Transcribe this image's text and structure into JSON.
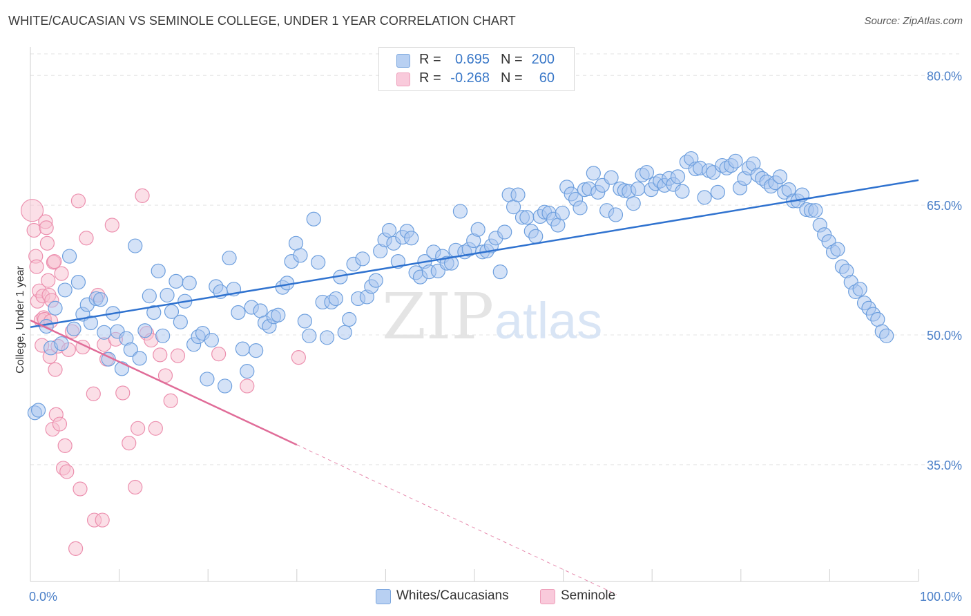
{
  "header": {
    "title": "WHITE/CAUCASIAN VS SEMINOLE COLLEGE, UNDER 1 YEAR CORRELATION CHART",
    "source": "Source: ZipAtlas.com"
  },
  "legend": {
    "rows": [
      {
        "r_label": "R =",
        "r_value": "0.695",
        "n_label": "N =",
        "n_value": "200"
      },
      {
        "r_label": "R =",
        "r_value": "-0.268",
        "n_label": "N =",
        "n_value": "60"
      }
    ]
  },
  "watermark": {
    "zip": "ZIP",
    "atlas": "atlas"
  },
  "colors": {
    "blue_fill": "#a9c6ef",
    "blue_stroke": "#6d9fde",
    "blue_line": "#2f72cf",
    "pink_fill": "#f7bfd0",
    "pink_stroke": "#ec8fae",
    "pink_line": "#e06c98",
    "axis_text": "#4a7fc8",
    "grid": "#e3e3e3"
  },
  "chart_data": {
    "type": "scatter",
    "title": "WHITE/CAUCASIAN VS SEMINOLE COLLEGE, UNDER 1 YEAR CORRELATION CHART",
    "xlabel": "",
    "ylabel": "College, Under 1 year",
    "xlim": [
      0,
      100
    ],
    "ylim": [
      21.5,
      82.5
    ],
    "x_tick_labels": [
      "0.0%",
      "100.0%"
    ],
    "y_ticks": [
      35,
      50,
      65,
      80
    ],
    "y_tick_labels": [
      "35.0%",
      "50.0%",
      "65.0%",
      "80.0%"
    ],
    "grid": "horizontal dashed",
    "legend_position": "bottom-center",
    "series": [
      {
        "name": "Whites/Caucasians",
        "r": 0.695,
        "n": 200,
        "trend": {
          "x": [
            0,
            100
          ],
          "y": [
            50.9,
            67.9
          ]
        },
        "points": [
          [
            0.5,
            41
          ],
          [
            0.9,
            41.3
          ],
          [
            1.8,
            51
          ],
          [
            2.3,
            48.5
          ],
          [
            2.8,
            53.1
          ],
          [
            3.5,
            49
          ],
          [
            3.9,
            55.2
          ],
          [
            4.4,
            59.1
          ],
          [
            4.9,
            50.7
          ],
          [
            5.4,
            56.1
          ],
          [
            5.9,
            52.4
          ],
          [
            6.4,
            53.5
          ],
          [
            6.8,
            51.4
          ],
          [
            7.4,
            54.2
          ],
          [
            7.9,
            54.1
          ],
          [
            8.3,
            50.3
          ],
          [
            8.8,
            47.2
          ],
          [
            9.3,
            52.5
          ],
          [
            9.8,
            50.4
          ],
          [
            10.3,
            46.1
          ],
          [
            10.8,
            49.6
          ],
          [
            11.3,
            48.3
          ],
          [
            11.8,
            60.3
          ],
          [
            12.3,
            47.3
          ],
          [
            12.9,
            50.5
          ],
          [
            13.4,
            54.5
          ],
          [
            13.9,
            52.6
          ],
          [
            14.4,
            57.4
          ],
          [
            14.9,
            49.9
          ],
          [
            15.4,
            54.6
          ],
          [
            15.9,
            52.7
          ],
          [
            16.4,
            56.2
          ],
          [
            16.9,
            51.5
          ],
          [
            17.4,
            53.9
          ],
          [
            17.9,
            56
          ],
          [
            18.4,
            48.9
          ],
          [
            18.9,
            49.8
          ],
          [
            19.4,
            50.2
          ],
          [
            19.9,
            44.9
          ],
          [
            20.4,
            49.4
          ],
          [
            20.9,
            55.6
          ],
          [
            21.4,
            55
          ],
          [
            21.9,
            44.1
          ],
          [
            22.4,
            58.9
          ],
          [
            22.9,
            55.3
          ],
          [
            23.4,
            52.6
          ],
          [
            23.9,
            48.4
          ],
          [
            24.4,
            45.8
          ],
          [
            24.9,
            53.2
          ],
          [
            25.4,
            48.2
          ],
          [
            25.9,
            52.8
          ],
          [
            26.4,
            51.4
          ],
          [
            26.9,
            51
          ],
          [
            27.4,
            52.1
          ],
          [
            27.9,
            52.3
          ],
          [
            28.4,
            55.5
          ],
          [
            28.9,
            56
          ],
          [
            29.4,
            58.5
          ],
          [
            29.9,
            60.6
          ],
          [
            30.4,
            59.2
          ],
          [
            30.9,
            51.6
          ],
          [
            31.4,
            49.9
          ],
          [
            31.9,
            63.4
          ],
          [
            32.4,
            58.4
          ],
          [
            32.9,
            53.8
          ],
          [
            33.4,
            49.7
          ],
          [
            33.9,
            53.8
          ],
          [
            34.4,
            54.2
          ],
          [
            34.9,
            56.7
          ],
          [
            35.4,
            50.3
          ],
          [
            35.9,
            51.8
          ],
          [
            36.4,
            58.2
          ],
          [
            36.9,
            54.2
          ],
          [
            37.4,
            58.8
          ],
          [
            37.9,
            54.4
          ],
          [
            38.4,
            55.6
          ],
          [
            38.9,
            56.3
          ],
          [
            39.4,
            59.7
          ],
          [
            39.9,
            61
          ],
          [
            40.4,
            62.1
          ],
          [
            40.9,
            60.6
          ],
          [
            41.4,
            58.5
          ],
          [
            41.9,
            61.3
          ],
          [
            42.4,
            62
          ],
          [
            42.9,
            61.2
          ],
          [
            43.4,
            57.2
          ],
          [
            43.9,
            56.7
          ],
          [
            44.4,
            58.5
          ],
          [
            44.9,
            57.3
          ],
          [
            45.4,
            59.6
          ],
          [
            45.9,
            57.4
          ],
          [
            46.4,
            59.1
          ],
          [
            46.9,
            58.3
          ],
          [
            47.4,
            58.3
          ],
          [
            47.9,
            59.8
          ],
          [
            48.4,
            64.3
          ],
          [
            48.9,
            59.6
          ],
          [
            49.4,
            59.9
          ],
          [
            49.9,
            60.9
          ],
          [
            50.4,
            62.2
          ],
          [
            50.9,
            59.6
          ],
          [
            51.4,
            59.7
          ],
          [
            51.9,
            60.3
          ],
          [
            52.4,
            61.2
          ],
          [
            52.9,
            57.3
          ],
          [
            53.4,
            61.9
          ],
          [
            53.9,
            66.2
          ],
          [
            54.4,
            64.8
          ],
          [
            54.9,
            66.2
          ],
          [
            55.4,
            63.6
          ],
          [
            55.9,
            63.6
          ],
          [
            56.4,
            62
          ],
          [
            56.9,
            61.4
          ],
          [
            57.4,
            63.7
          ],
          [
            57.9,
            64.2
          ],
          [
            58.4,
            64.1
          ],
          [
            58.9,
            63.4
          ],
          [
            59.4,
            62.7
          ],
          [
            59.9,
            64.1
          ],
          [
            60.4,
            67.1
          ],
          [
            60.9,
            66.3
          ],
          [
            61.4,
            65.7
          ],
          [
            61.9,
            64.7
          ],
          [
            62.4,
            66.8
          ],
          [
            62.9,
            66.9
          ],
          [
            63.4,
            68.7
          ],
          [
            63.9,
            66.5
          ],
          [
            64.4,
            67.3
          ],
          [
            64.9,
            64.4
          ],
          [
            65.4,
            68.2
          ],
          [
            65.9,
            63.9
          ],
          [
            66.4,
            66.9
          ],
          [
            66.9,
            66.7
          ],
          [
            67.4,
            66.6
          ],
          [
            67.9,
            65.2
          ],
          [
            68.4,
            66.9
          ],
          [
            68.9,
            68.5
          ],
          [
            69.4,
            68.8
          ],
          [
            69.9,
            66.8
          ],
          [
            70.4,
            67.5
          ],
          [
            70.9,
            67.8
          ],
          [
            71.4,
            67.3
          ],
          [
            71.9,
            68.1
          ],
          [
            72.4,
            67.4
          ],
          [
            72.9,
            68.3
          ],
          [
            73.4,
            66.6
          ],
          [
            73.9,
            70
          ],
          [
            74.4,
            70.4
          ],
          [
            74.9,
            69.2
          ],
          [
            75.4,
            69.3
          ],
          [
            75.9,
            65.9
          ],
          [
            76.4,
            69
          ],
          [
            76.9,
            68.8
          ],
          [
            77.4,
            66.5
          ],
          [
            77.9,
            69.6
          ],
          [
            78.4,
            69.3
          ],
          [
            78.9,
            69.6
          ],
          [
            79.4,
            70.1
          ],
          [
            79.9,
            67
          ],
          [
            80.4,
            68.1
          ],
          [
            80.9,
            69.3
          ],
          [
            81.4,
            69.8
          ],
          [
            81.9,
            68.5
          ],
          [
            82.4,
            68.1
          ],
          [
            82.9,
            67.7
          ],
          [
            83.4,
            67.2
          ],
          [
            83.9,
            67.6
          ],
          [
            84.4,
            68.3
          ],
          [
            84.9,
            66.5
          ],
          [
            85.4,
            66.8
          ],
          [
            85.9,
            65.5
          ],
          [
            86.4,
            65.5
          ],
          [
            86.9,
            66.2
          ],
          [
            87.4,
            64.5
          ],
          [
            87.9,
            64.4
          ],
          [
            88.4,
            64.4
          ],
          [
            88.9,
            62.7
          ],
          [
            89.4,
            61.6
          ],
          [
            89.9,
            60.8
          ],
          [
            90.4,
            59.6
          ],
          [
            90.9,
            59.9
          ],
          [
            91.4,
            57.9
          ],
          [
            91.9,
            57.4
          ],
          [
            92.4,
            56.1
          ],
          [
            92.9,
            55
          ],
          [
            93.4,
            55.3
          ],
          [
            93.9,
            53.7
          ],
          [
            94.4,
            53.1
          ],
          [
            94.9,
            52.4
          ],
          [
            95.4,
            51.8
          ],
          [
            95.9,
            50.4
          ],
          [
            96.4,
            49.9
          ]
        ]
      },
      {
        "name": "Seminole",
        "r": -0.268,
        "n": 60,
        "trend": {
          "x": [
            0,
            30
          ],
          "y": [
            51.7,
            37.3
          ]
        },
        "trend_dashed": {
          "x": [
            30,
            66
          ],
          "y": [
            37.3,
            20
          ]
        },
        "points": [
          [
            0.2,
            64.4
          ],
          [
            0.4,
            62.1
          ],
          [
            0.6,
            59.1
          ],
          [
            0.7,
            57.9
          ],
          [
            0.8,
            53.9
          ],
          [
            1,
            55.1
          ],
          [
            1.2,
            51.7
          ],
          [
            1.3,
            48.8
          ],
          [
            1.4,
            54.5
          ],
          [
            1.5,
            52
          ],
          [
            1.6,
            51.8
          ],
          [
            1.7,
            63.1
          ],
          [
            1.8,
            62.4
          ],
          [
            1.9,
            60.6
          ],
          [
            2,
            56.3
          ],
          [
            2.1,
            54.6
          ],
          [
            2.2,
            47.5
          ],
          [
            2.3,
            51.6
          ],
          [
            2.4,
            54
          ],
          [
            2.5,
            39.1
          ],
          [
            2.6,
            58.4
          ],
          [
            2.7,
            58.5
          ],
          [
            2.8,
            46
          ],
          [
            2.9,
            40.8
          ],
          [
            3.1,
            48.7
          ],
          [
            3.3,
            39.7
          ],
          [
            3.5,
            57.1
          ],
          [
            3.7,
            34.6
          ],
          [
            3.9,
            37.2
          ],
          [
            4.1,
            34.2
          ],
          [
            4.3,
            48.3
          ],
          [
            4.7,
            50.4
          ],
          [
            5.1,
            25.3
          ],
          [
            5.4,
            65.5
          ],
          [
            5.6,
            32.2
          ],
          [
            5.9,
            48.6
          ],
          [
            6.3,
            61.2
          ],
          [
            7.1,
            43.2
          ],
          [
            7.2,
            28.6
          ],
          [
            7.6,
            54.6
          ],
          [
            8.3,
            48.9
          ],
          [
            8.6,
            47.2
          ],
          [
            9.2,
            62.7
          ],
          [
            9.6,
            49.5
          ],
          [
            10.4,
            43.3
          ],
          [
            11.1,
            37.5
          ],
          [
            11.8,
            32.4
          ],
          [
            12.1,
            39.2
          ],
          [
            12.6,
            66.1
          ],
          [
            13.1,
            50.2
          ],
          [
            13.6,
            49.4
          ],
          [
            14.1,
            39.2
          ],
          [
            14.6,
            47.7
          ],
          [
            15.2,
            45.3
          ],
          [
            15.8,
            42.4
          ],
          [
            16.6,
            47.6
          ],
          [
            21.2,
            47.8
          ],
          [
            24.4,
            44.1
          ],
          [
            30.2,
            47.4
          ],
          [
            8.1,
            28.6
          ]
        ]
      }
    ]
  }
}
